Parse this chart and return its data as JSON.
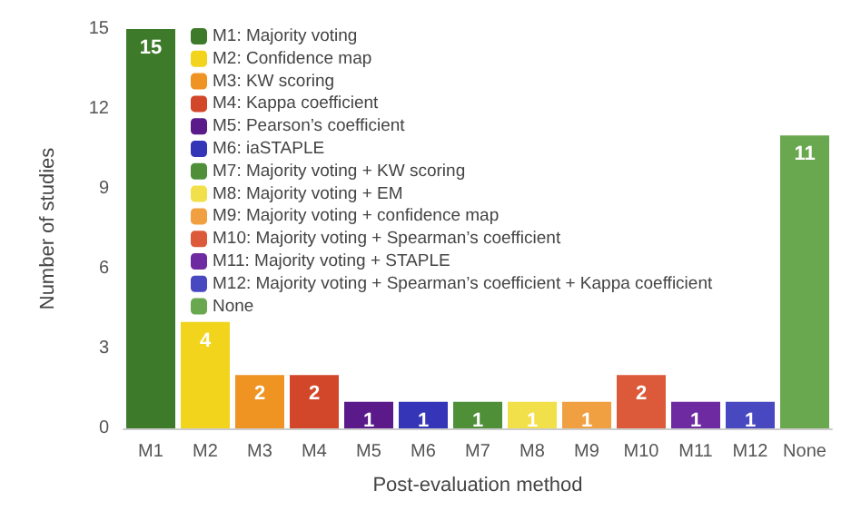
{
  "chart_data": {
    "type": "bar",
    "xlabel": "Post-evaluation method",
    "ylabel": "Number of studies",
    "categories": [
      "M1",
      "M2",
      "M3",
      "M4",
      "M5",
      "M6",
      "M7",
      "M8",
      "M9",
      "M10",
      "M11",
      "M12",
      "None"
    ],
    "stacked": true,
    "data_labels": true,
    "legend": "top left",
    "grid": false,
    "ylim": [
      0,
      15
    ],
    "yticks": [
      0,
      3,
      6,
      9,
      12,
      15
    ],
    "series": [
      {
        "name": "M1: Majority voting",
        "color": "#3d7a2a",
        "values": [
          15,
          null,
          null,
          null,
          null,
          null,
          null,
          null,
          null,
          null,
          null,
          null,
          null
        ]
      },
      {
        "name": "M2: Confidence map",
        "color": "#f2d41c",
        "values": [
          null,
          4,
          null,
          null,
          null,
          null,
          null,
          null,
          null,
          null,
          null,
          null,
          null
        ]
      },
      {
        "name": "M3: KW scoring",
        "color": "#ef9322",
        "values": [
          null,
          null,
          2,
          null,
          null,
          null,
          null,
          null,
          null,
          null,
          null,
          null,
          null
        ]
      },
      {
        "name": "M4: Kappa coefficient",
        "color": "#d2472a",
        "values": [
          null,
          null,
          null,
          2,
          null,
          null,
          null,
          null,
          null,
          null,
          null,
          null,
          null
        ]
      },
      {
        "name": "M5: Pearson’s coefficient",
        "color": "#5a1a8a",
        "values": [
          null,
          null,
          null,
          null,
          1,
          null,
          null,
          null,
          null,
          null,
          null,
          null,
          null
        ]
      },
      {
        "name": "M6: iaSTAPLE",
        "color": "#3535b8",
        "values": [
          null,
          null,
          null,
          null,
          null,
          1,
          null,
          null,
          null,
          null,
          null,
          null,
          null
        ]
      },
      {
        "name": "M7: Majority voting + KW scoring",
        "color": "#4e8f38",
        "values": [
          null,
          null,
          null,
          null,
          null,
          null,
          1,
          null,
          null,
          null,
          null,
          null,
          null
        ]
      },
      {
        "name": "M8: Majority voting + EM",
        "color": "#f1e04a",
        "values": [
          null,
          null,
          null,
          null,
          null,
          null,
          null,
          1,
          null,
          null,
          null,
          null,
          null
        ]
      },
      {
        "name": "M9: Majority voting + confidence map",
        "color": "#f0a040",
        "values": [
          null,
          null,
          null,
          null,
          null,
          null,
          null,
          null,
          1,
          null,
          null,
          null,
          null
        ]
      },
      {
        "name": "M10: Majority voting + Spearman’s coefficient",
        "color": "#dc5a3a",
        "values": [
          null,
          null,
          null,
          null,
          null,
          null,
          null,
          null,
          null,
          2,
          null,
          null,
          null
        ]
      },
      {
        "name": "M11: Majority voting + STAPLE",
        "color": "#6e2aa0",
        "values": [
          null,
          null,
          null,
          null,
          null,
          null,
          null,
          null,
          null,
          null,
          1,
          null,
          null
        ]
      },
      {
        "name": "M12: Majority voting + Spearman’s coefficient + Kappa coefficient",
        "color": "#4848c0",
        "values": [
          null,
          null,
          null,
          null,
          null,
          null,
          null,
          null,
          null,
          null,
          null,
          1,
          null
        ]
      },
      {
        "name": "None",
        "color": "#6aa84f",
        "values": [
          null,
          null,
          null,
          null,
          null,
          null,
          null,
          null,
          null,
          null,
          null,
          null,
          11
        ]
      }
    ]
  }
}
